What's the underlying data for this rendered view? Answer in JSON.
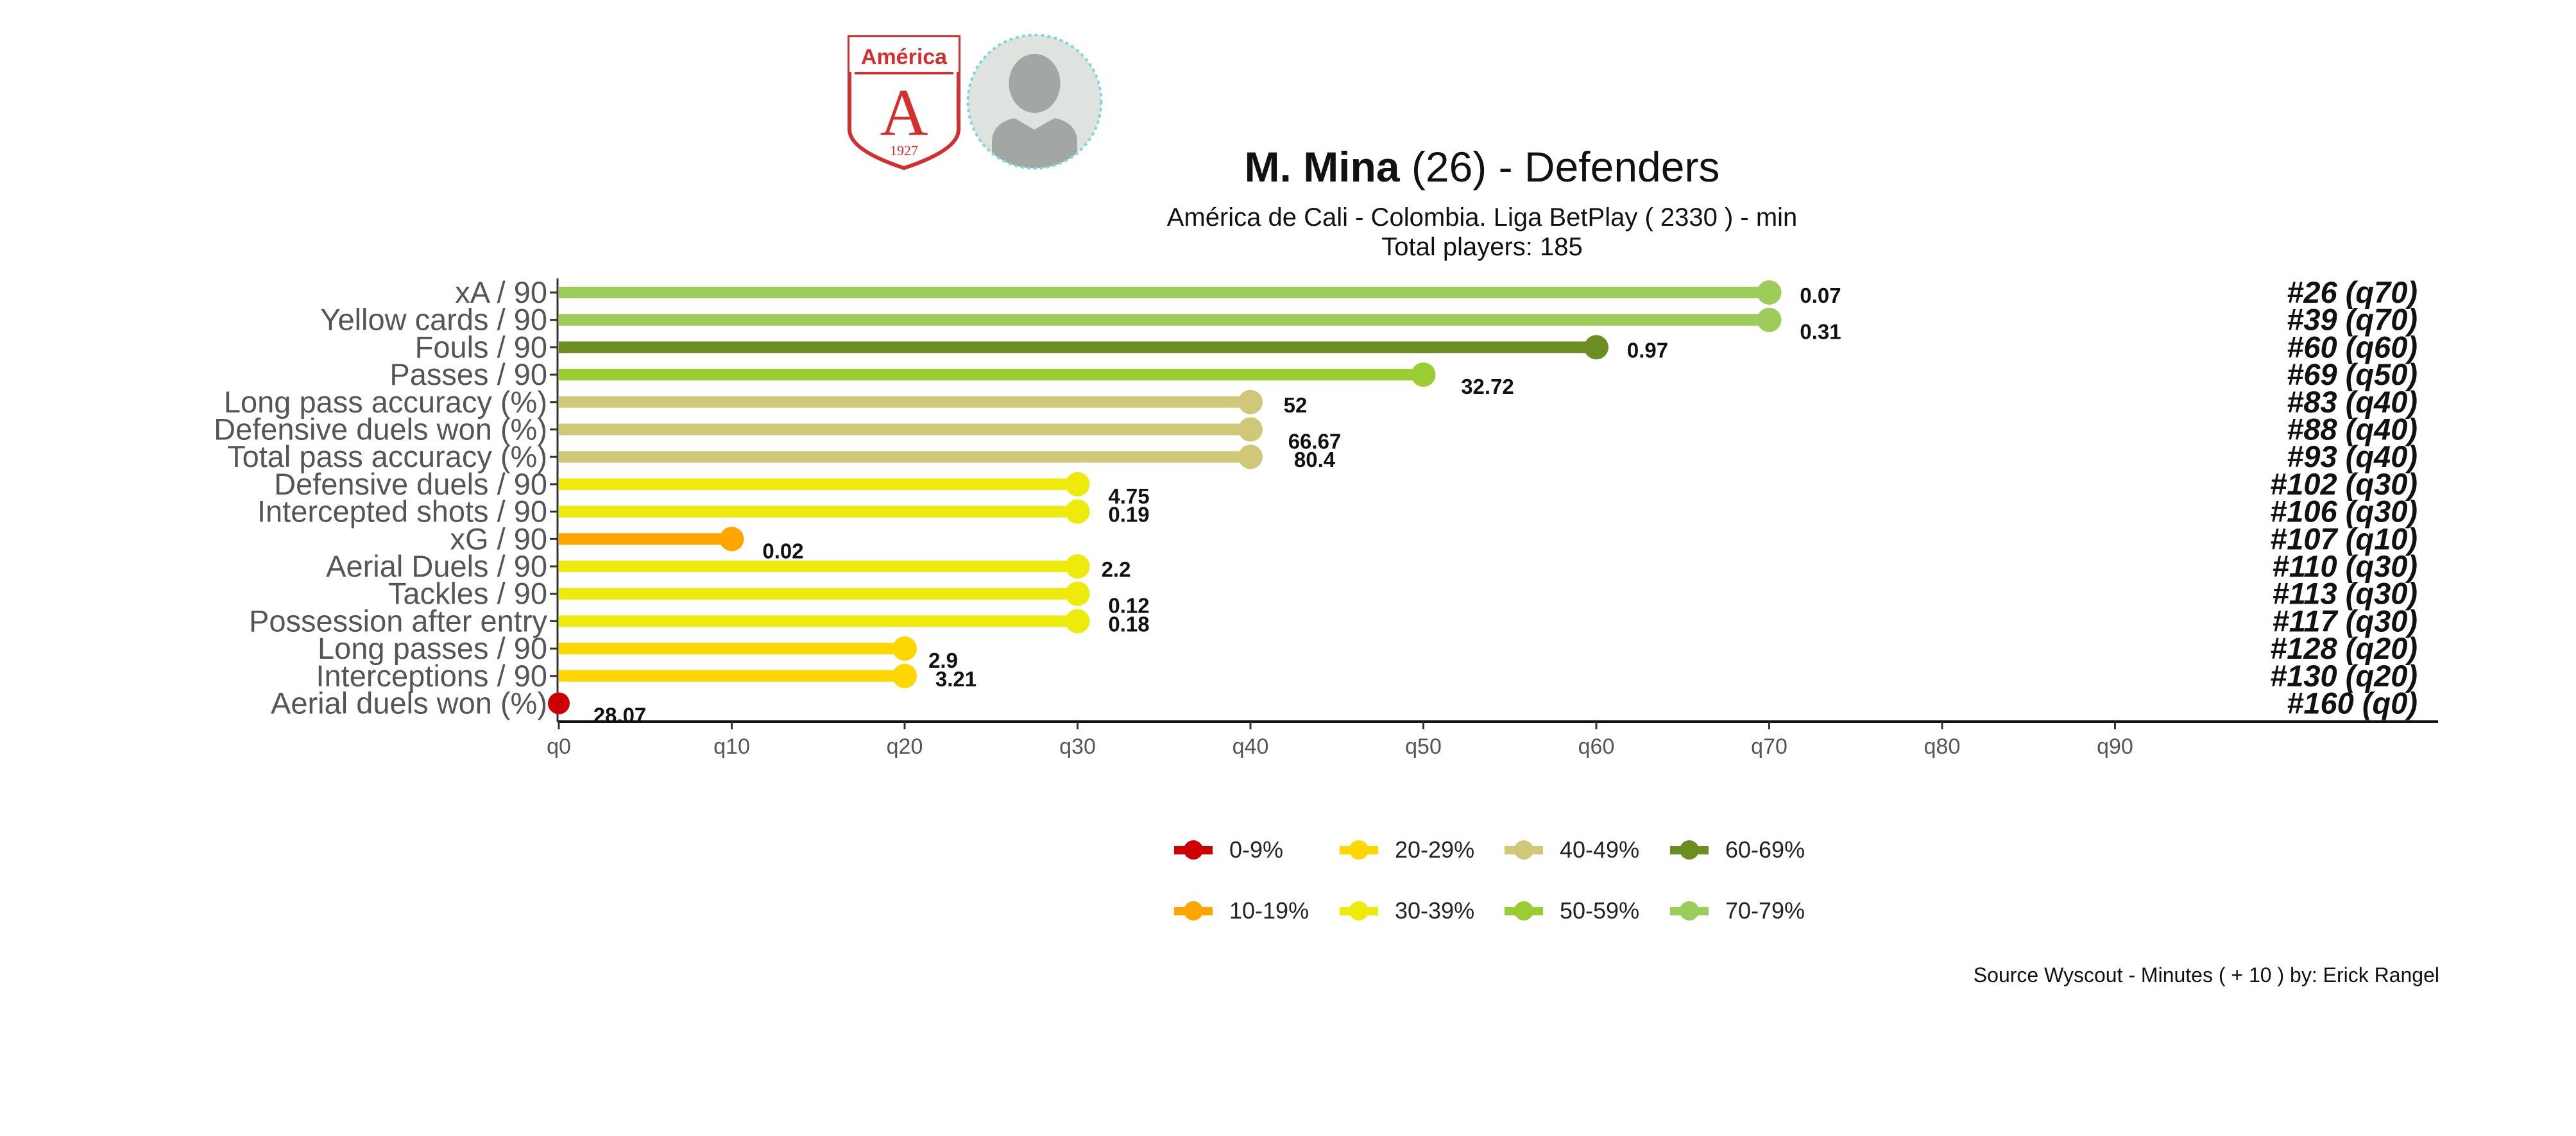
{
  "header": {
    "player_name": "M. Mina",
    "player_age": "(26)",
    "title_suffix": " -  Defenders",
    "subtitle_line1": "América de Cali  -  Colombia. Liga BetPlay  ( 2330 ) - min",
    "subtitle_line2": "Total players:  185",
    "crest_name": "América",
    "crest_letter": "A",
    "crest_year": "1927"
  },
  "footer": {
    "source": "Source Wyscout - Minutes ( + 10 ) by: Erick Rangel"
  },
  "colors": {
    "q0": "#cc0000",
    "q10": "#ffa500",
    "q20": "#ffd700",
    "q30": "#eeea0c",
    "q40": "#cfc878",
    "q50": "#9acd32",
    "q60": "#6b8e23",
    "q70": "#9ccc5a"
  },
  "legend": [
    {
      "label": "0-9%",
      "color_key": "q0"
    },
    {
      "label": "10-19%",
      "color_key": "q10"
    },
    {
      "label": "20-29%",
      "color_key": "q20"
    },
    {
      "label": "30-39%",
      "color_key": "q30"
    },
    {
      "label": "40-49%",
      "color_key": "q40"
    },
    {
      "label": "50-59%",
      "color_key": "q50"
    },
    {
      "label": "60-69%",
      "color_key": "q60"
    },
    {
      "label": "70-79%",
      "color_key": "q70"
    }
  ],
  "chart_data": {
    "type": "bar",
    "orientation": "horizontal",
    "style": "lollipop",
    "x_axis_ticks": [
      "q0",
      "q10",
      "q20",
      "q30",
      "q40",
      "q50",
      "q60",
      "q70",
      "q80",
      "q90"
    ],
    "xlim": [
      0,
      100
    ],
    "categories": [
      "xA / 90",
      "Yellow cards / 90",
      "Fouls / 90",
      "Passes / 90",
      "Long pass accuracy (%)",
      "Defensive duels won (%)",
      "Total pass accuracy (%)",
      "Defensive duels / 90",
      "Intercepted shots / 90",
      "xG / 90",
      "Aerial Duels / 90",
      "Tackles / 90",
      "Possession after entry",
      "Long passes / 90",
      "Interceptions / 90",
      "Aerial duels won (%)"
    ],
    "percentiles": [
      70,
      70,
      60,
      50,
      40,
      40,
      40,
      30,
      30,
      10,
      30,
      30,
      30,
      20,
      20,
      0
    ],
    "values": [
      "0.07",
      "0.31",
      "0.97",
      "32.72",
      "52",
      "66.67",
      "80.4",
      "4.75",
      "0.19",
      "0.02",
      "2.2",
      "0.12",
      "0.18",
      "2.9",
      "3.21",
      "28.07"
    ],
    "ranks": [
      "#26 (q70)",
      "#39 (q70)",
      "#60 (q60)",
      "#69 (q50)",
      "#83 (q40)",
      "#88 (q40)",
      "#93 (q40)",
      "#102 (q30)",
      "#106 (q30)",
      "#107 (q10)",
      "#110 (q30)",
      "#113 (q30)",
      "#117 (q30)",
      "#128 (q20)",
      "#130 (q20)",
      "#160 (q0)"
    ],
    "grid": false
  }
}
